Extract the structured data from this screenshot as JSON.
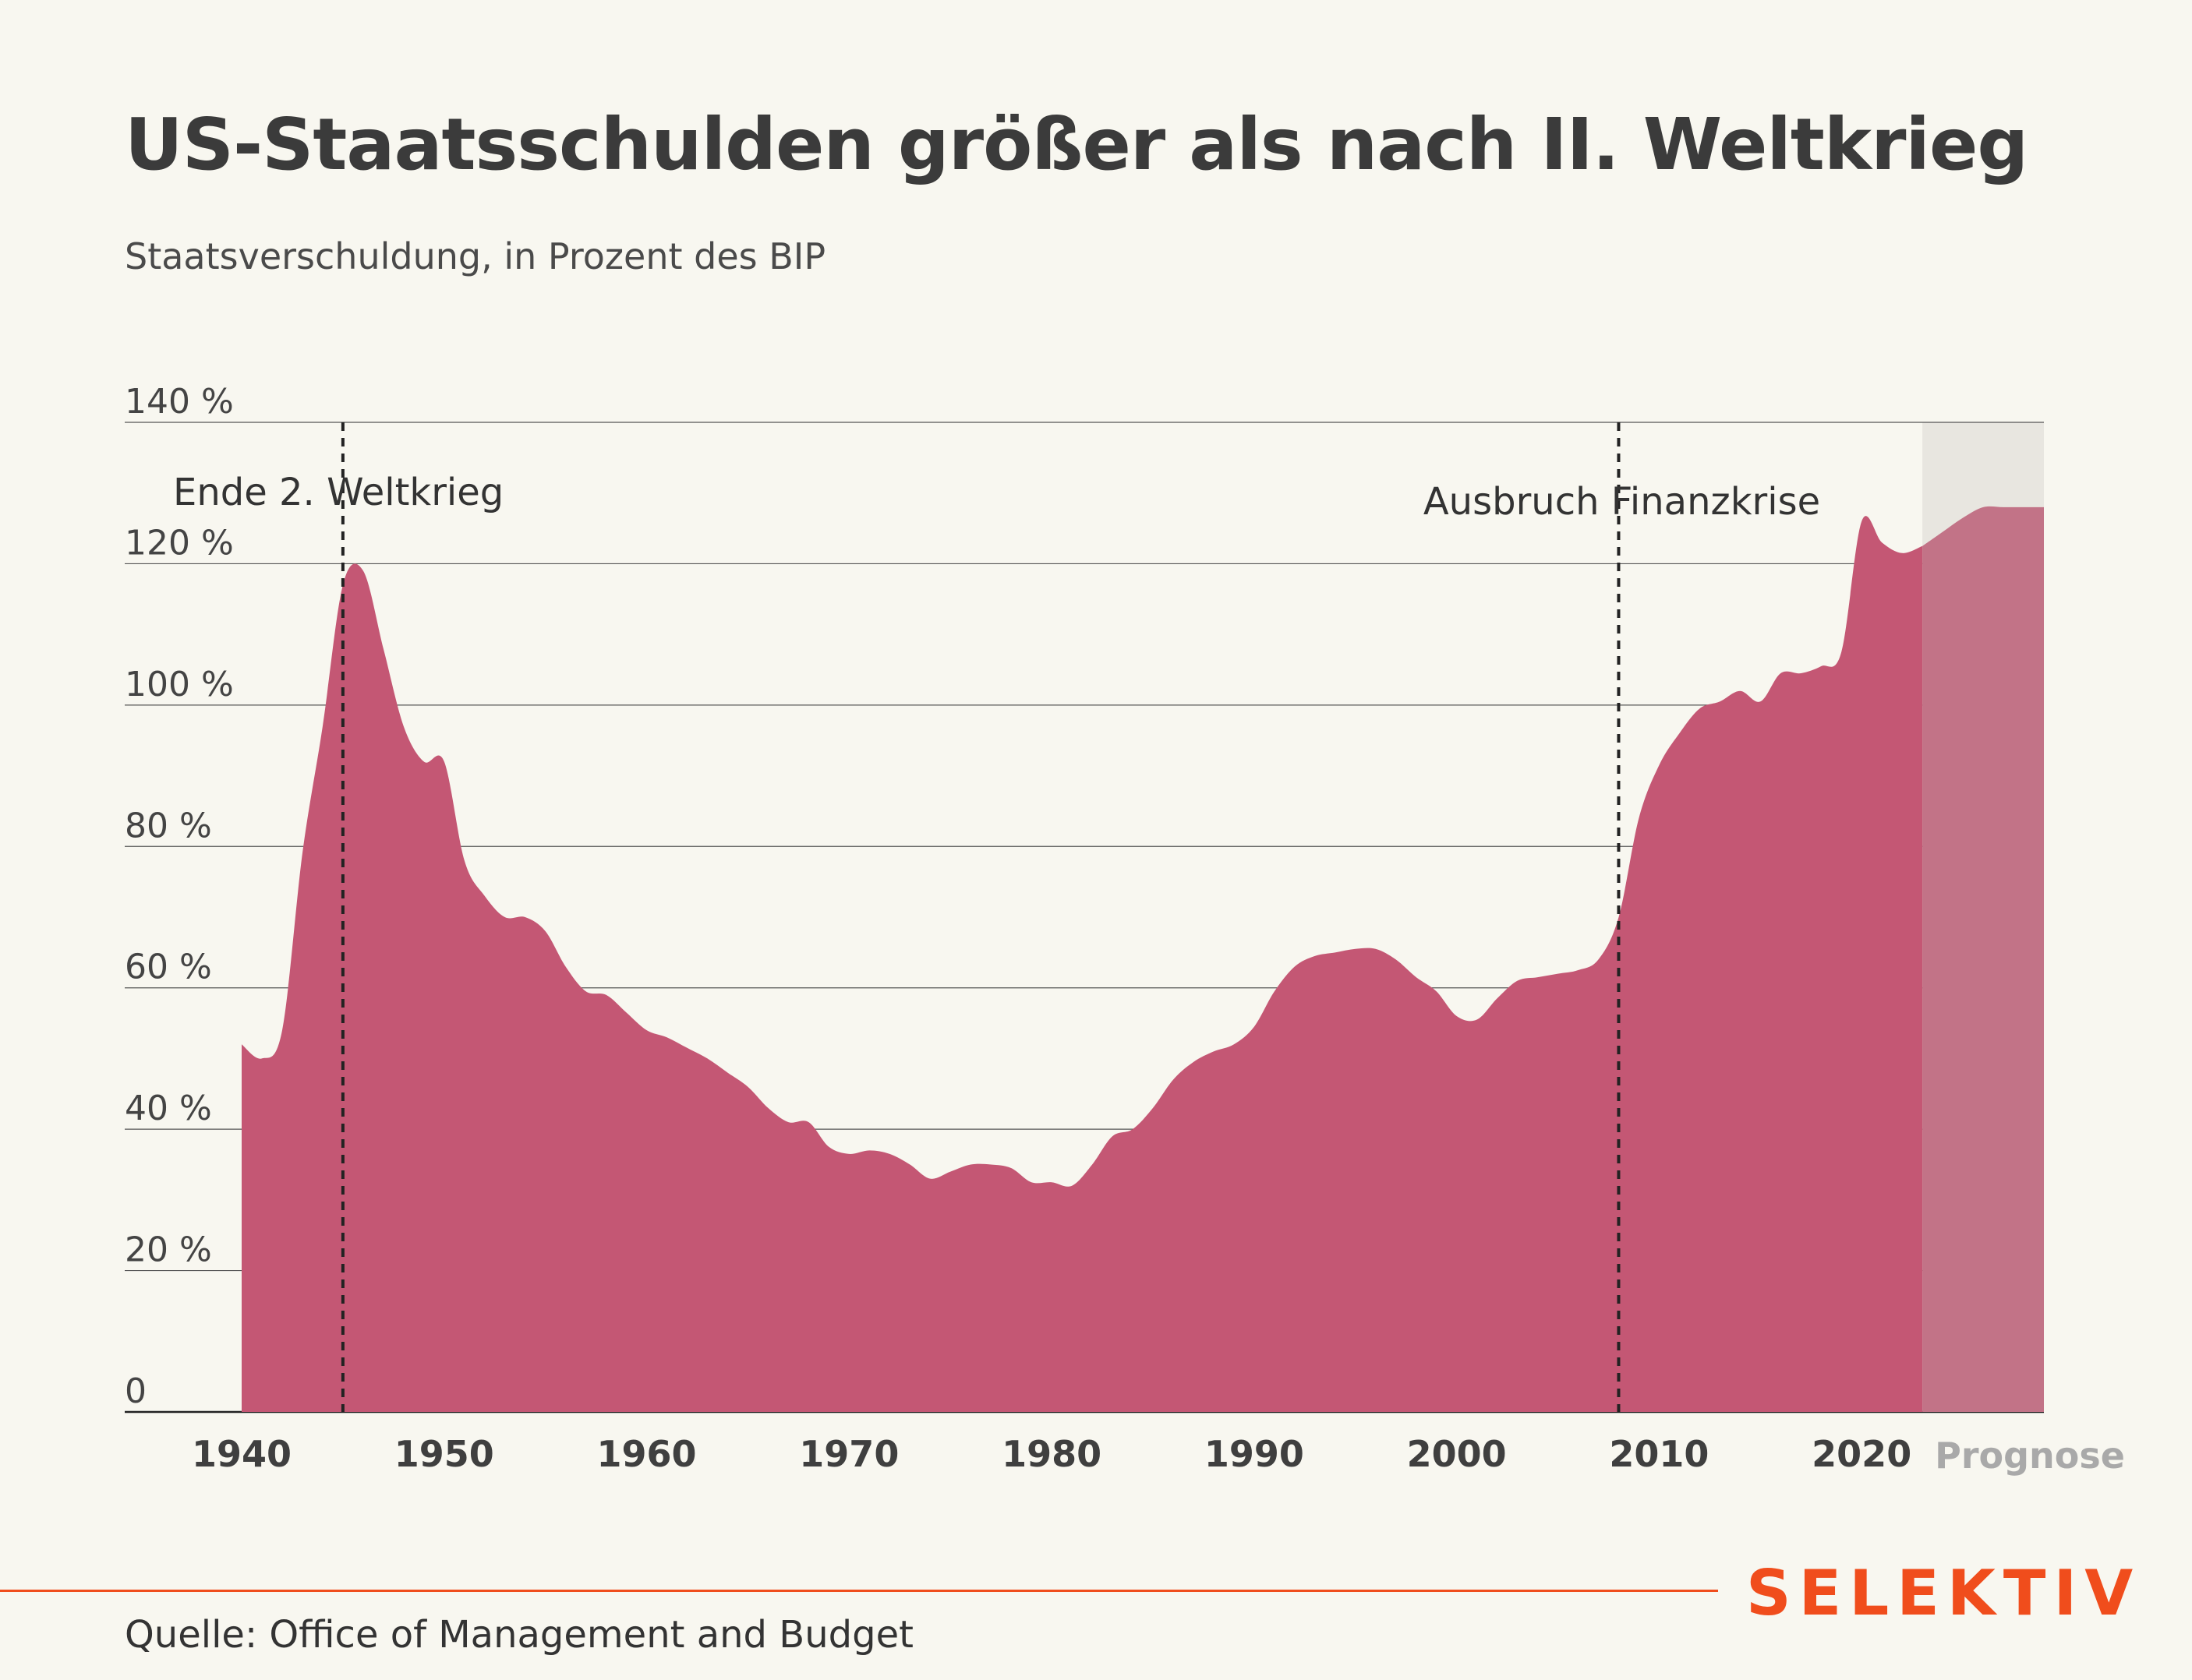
{
  "header": {
    "title": "US-Staatsschulden größer als nach II. Weltkrieg",
    "subtitle": "Staatsverschuldung, in Prozent des BIP"
  },
  "footer": {
    "brand": "SELEKTIV",
    "source": "Quelle: Office of Management and Budget"
  },
  "colors": {
    "area": "#c45774",
    "area_forecast": "#c27387",
    "forecast_band": "#e8e6e0",
    "grid": "#555555",
    "brand": "#f04d1c",
    "background": "#f8f7f0"
  },
  "chart_data": {
    "type": "area",
    "xlabel": "",
    "ylabel": "",
    "xlim": [
      1940,
      2029
    ],
    "ylim": [
      0,
      140
    ],
    "x_ticks": [
      1940,
      1950,
      1960,
      1970,
      1980,
      1990,
      2000,
      2010,
      2020
    ],
    "x_tick_labels": [
      "1940",
      "1950",
      "1960",
      "1970",
      "1980",
      "1990",
      "2000",
      "2010",
      "2020"
    ],
    "y_ticks": [
      0,
      20,
      40,
      60,
      80,
      100,
      120,
      140
    ],
    "y_tick_labels": [
      "0",
      "20 %",
      "40 %",
      "60 %",
      "80 %",
      "100 %",
      "120 %",
      "140 %"
    ],
    "grid": true,
    "forecast": {
      "label": "Prognose",
      "from": 2023,
      "to": 2029
    },
    "annotations": [
      {
        "label": "Ende 2. Weltkrieg",
        "x": 1945,
        "align": "right"
      },
      {
        "label": "Ausbruch Finanzkrise",
        "x": 2008,
        "align": "center"
      }
    ],
    "series": [
      {
        "x": [
          1940,
          1941,
          1942,
          1943,
          1944,
          1945,
          1946,
          1947,
          1948,
          1949,
          1950,
          1951,
          1952,
          1953,
          1954,
          1955,
          1956,
          1957,
          1958,
          1959,
          1960,
          1961,
          1962,
          1963,
          1964,
          1965,
          1966,
          1967,
          1968,
          1969,
          1970,
          1971,
          1972,
          1973,
          1974,
          1975,
          1976,
          1977,
          1978,
          1979,
          1980,
          1981,
          1982,
          1983,
          1984,
          1985,
          1986,
          1987,
          1988,
          1989,
          1990,
          1991,
          1992,
          1993,
          1994,
          1995,
          1996,
          1997,
          1998,
          1999,
          2000,
          2001,
          2002,
          2003,
          2004,
          2005,
          2006,
          2007,
          2008,
          2009,
          2010,
          2011,
          2012,
          2013,
          2014,
          2015,
          2016,
          2017,
          2018,
          2019,
          2020,
          2021,
          2022,
          2023,
          2024,
          2025,
          2026,
          2027,
          2028,
          2029
        ],
        "values": [
          52,
          50,
          54,
          79,
          97,
          117,
          119,
          108,
          97,
          92,
          92,
          78,
          73,
          70,
          70,
          68,
          63,
          59.5,
          59,
          56.5,
          54,
          53,
          51.5,
          50,
          48,
          46,
          43,
          41,
          41,
          37.5,
          36.5,
          37,
          36.5,
          35,
          33,
          34,
          35,
          35,
          34.5,
          32.5,
          32.5,
          32,
          35,
          39,
          40,
          43,
          47,
          49.5,
          51,
          52,
          54.5,
          59.5,
          63,
          64.5,
          65,
          65.5,
          65.5,
          64,
          61.5,
          59.5,
          56,
          55.5,
          58.5,
          61,
          61.5,
          62,
          62.5,
          64,
          70,
          84,
          91.5,
          96,
          99.5,
          100.5,
          102,
          100.5,
          104.5,
          104.5,
          105.5,
          107.5,
          126,
          123,
          121.5,
          122.5,
          124.5,
          126.5,
          128,
          128,
          128,
          128
        ]
      }
    ]
  }
}
